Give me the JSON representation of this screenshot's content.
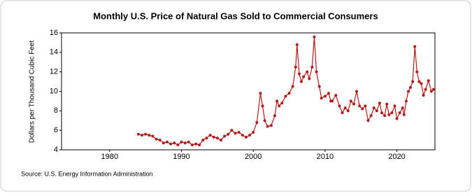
{
  "chart_data": {
    "type": "line",
    "title": "Monthly U.S. Price of Natural Gas Sold to Commercial Consumers",
    "y_label": "Dollars per Thousand Cubic Feet",
    "source": "Source: U.S. Energy Information Administration",
    "color": "#b31b1b",
    "grid": false,
    "x": [
      1984.0,
      1984.5,
      1985.0,
      1985.5,
      1986.0,
      1986.5,
      1987.0,
      1987.5,
      1988.0,
      1988.5,
      1989.0,
      1989.5,
      1990.0,
      1990.5,
      1991.0,
      1991.5,
      1992.0,
      1992.5,
      1993.0,
      1993.5,
      1994.0,
      1994.5,
      1995.0,
      1995.5,
      1996.0,
      1996.5,
      1997.0,
      1997.5,
      1998.0,
      1998.5,
      1999.0,
      1999.5,
      2000.0,
      2000.5,
      2001.0,
      2001.3,
      2001.6,
      2002.0,
      2002.5,
      2003.0,
      2003.3,
      2003.6,
      2004.0,
      2004.5,
      2005.0,
      2005.5,
      2005.9,
      2006.1,
      2006.4,
      2006.7,
      2007.0,
      2007.5,
      2007.8,
      2008.2,
      2008.5,
      2008.8,
      2009.2,
      2009.5,
      2010.0,
      2010.5,
      2010.8,
      2011.0,
      2011.5,
      2012.0,
      2012.4,
      2012.8,
      2013.2,
      2013.6,
      2014.0,
      2014.4,
      2014.8,
      2015.2,
      2015.6,
      2016.0,
      2016.4,
      2016.8,
      2017.2,
      2017.6,
      2017.9,
      2018.3,
      2018.6,
      2018.9,
      2019.3,
      2019.7,
      2020.0,
      2020.4,
      2020.8,
      2021.0,
      2021.3,
      2021.6,
      2021.9,
      2022.2,
      2022.5,
      2022.8,
      2023.1,
      2023.4,
      2023.7,
      2024.0,
      2024.4,
      2024.8,
      2025.1
    ],
    "values": [
      5.6,
      5.5,
      5.6,
      5.5,
      5.4,
      5.1,
      5.0,
      4.7,
      4.8,
      4.6,
      4.7,
      4.5,
      4.8,
      4.7,
      4.8,
      4.5,
      4.6,
      4.5,
      5.0,
      5.2,
      5.5,
      5.3,
      5.2,
      5.0,
      5.4,
      5.6,
      6.0,
      5.7,
      5.8,
      5.5,
      5.3,
      5.5,
      5.8,
      6.8,
      9.8,
      8.5,
      7.0,
      6.4,
      6.5,
      7.5,
      9.0,
      8.5,
      8.8,
      9.5,
      9.8,
      10.5,
      12.5,
      14.8,
      11.8,
      11.0,
      11.5,
      12.0,
      11.3,
      12.5,
      15.6,
      12.0,
      10.5,
      9.3,
      9.5,
      9.8,
      9.0,
      9.0,
      9.6,
      8.5,
      7.8,
      8.3,
      8.0,
      9.0,
      8.7,
      10.0,
      8.5,
      8.2,
      8.5,
      7.0,
      7.5,
      8.3,
      8.0,
      8.8,
      7.8,
      7.5,
      8.7,
      7.6,
      7.8,
      8.5,
      7.2,
      7.8,
      8.3,
      7.6,
      9.0,
      10.0,
      10.4,
      11.0,
      14.6,
      12.0,
      11.0,
      10.8,
      9.6,
      10.2,
      11.1,
      10.0,
      10.2
    ],
    "xlim": [
      1973.3,
      2025.3
    ],
    "xticks": [
      1980,
      1990,
      2000,
      2010,
      2020
    ],
    "ylim": [
      4,
      16
    ],
    "yticks": [
      4,
      6,
      8,
      10,
      12,
      14,
      16
    ]
  }
}
